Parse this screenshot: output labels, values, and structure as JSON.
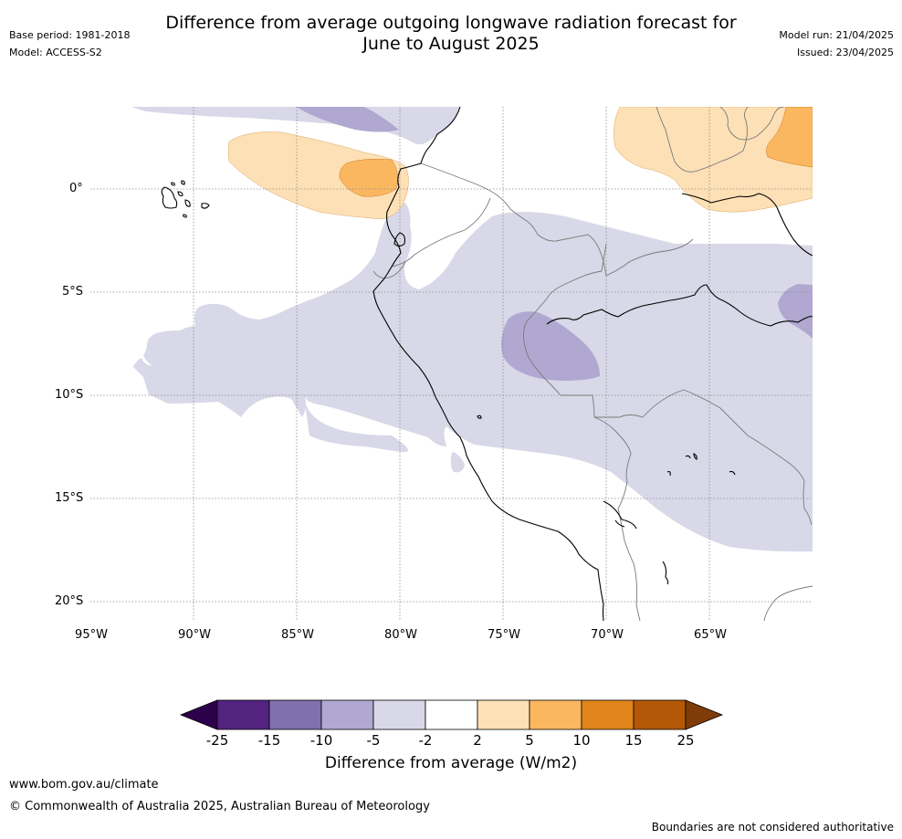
{
  "header": {
    "title_line1": "Difference from average outgoing longwave radiation forecast for",
    "title_line2": "June to August 2025",
    "base_period": "Base period: 1981-2018",
    "model": "Model: ACCESS-S2",
    "model_run": "Model run: 21/04/2025",
    "issued": "Issued: 23/04/2025"
  },
  "map": {
    "lat_labels": [
      "0°",
      "5°S",
      "10°S",
      "15°S",
      "20°S"
    ],
    "lon_labels": [
      "95°W",
      "90°W",
      "85°W",
      "80°W",
      "75°W",
      "70°W",
      "65°W"
    ]
  },
  "colorbar": {
    "ticks": [
      "-25",
      "-15",
      "-10",
      "-5",
      "-2",
      "2",
      "5",
      "10",
      "15",
      "25"
    ],
    "colors": [
      "#52237f",
      "#8070ab",
      "#b0a8d0",
      "#d8d8e8",
      "#ffffff",
      "#fde0b5",
      "#fbb760",
      "#e1851c",
      "#b35806"
    ],
    "under_color": "#2d004b",
    "over_color": "#7f3b08",
    "label": "Difference from average (W/m2)"
  },
  "footer": {
    "website": "www.bom.gov.au/climate",
    "copyright": "© Commonwealth of Australia 2025, Australian Bureau of Meteorology",
    "disclaimer": "Boundaries are not considered authoritative"
  }
}
